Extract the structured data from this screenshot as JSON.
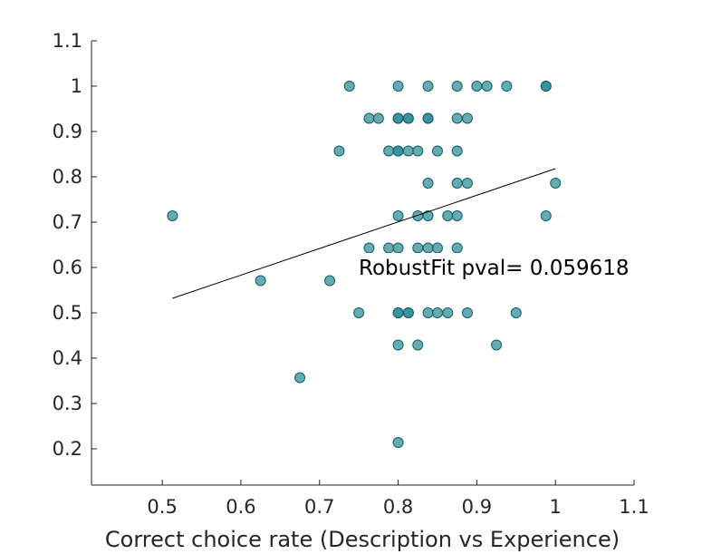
{
  "chart_data": {
    "type": "scatter",
    "title": "",
    "xlabel": "Correct choice rate (Description vs Experience)",
    "ylabel": "",
    "xlim": [
      0.41,
      1.1
    ],
    "ylim": [
      0.12,
      1.1
    ],
    "xticks": [
      "0.5",
      "0.6",
      "0.7",
      "0.8",
      "0.9",
      "1",
      "1.1"
    ],
    "yticks": [
      "0.2",
      "0.3",
      "0.4",
      "0.5",
      "0.6",
      "0.7",
      "0.8",
      "0.9",
      "1",
      "1.1"
    ],
    "grid": false,
    "marker_color": "#2b8a94",
    "marker_edge_color": "#0f5e66",
    "fit_line_color": "#000000",
    "annotation": "RobustFit pval= 0.059618",
    "fit_line": {
      "x": [
        0.513,
        1.0
      ],
      "y": [
        0.532,
        0.818
      ]
    },
    "points": [
      {
        "x": 0.738,
        "y": 1.0
      },
      {
        "x": 0.8,
        "y": 1.0
      },
      {
        "x": 0.838,
        "y": 1.0
      },
      {
        "x": 0.875,
        "y": 1.0
      },
      {
        "x": 0.9,
        "y": 1.0
      },
      {
        "x": 0.913,
        "y": 1.0
      },
      {
        "x": 0.938,
        "y": 1.0
      },
      {
        "x": 0.988,
        "y": 1.0
      },
      {
        "x": 0.988,
        "y": 1.0
      },
      {
        "x": 0.763,
        "y": 0.929
      },
      {
        "x": 0.775,
        "y": 0.929
      },
      {
        "x": 0.8,
        "y": 0.929
      },
      {
        "x": 0.8,
        "y": 0.929
      },
      {
        "x": 0.813,
        "y": 0.929
      },
      {
        "x": 0.813,
        "y": 0.929
      },
      {
        "x": 0.838,
        "y": 0.929
      },
      {
        "x": 0.838,
        "y": 0.929
      },
      {
        "x": 0.875,
        "y": 0.929
      },
      {
        "x": 0.888,
        "y": 0.929
      },
      {
        "x": 0.725,
        "y": 0.857
      },
      {
        "x": 0.788,
        "y": 0.857
      },
      {
        "x": 0.8,
        "y": 0.857
      },
      {
        "x": 0.8,
        "y": 0.857
      },
      {
        "x": 0.813,
        "y": 0.857
      },
      {
        "x": 0.825,
        "y": 0.857
      },
      {
        "x": 0.85,
        "y": 0.857
      },
      {
        "x": 0.875,
        "y": 0.857
      },
      {
        "x": 0.838,
        "y": 0.786
      },
      {
        "x": 0.875,
        "y": 0.786
      },
      {
        "x": 0.888,
        "y": 0.786
      },
      {
        "x": 1.0,
        "y": 0.786
      },
      {
        "x": 0.513,
        "y": 0.714
      },
      {
        "x": 0.8,
        "y": 0.714
      },
      {
        "x": 0.825,
        "y": 0.714
      },
      {
        "x": 0.838,
        "y": 0.714
      },
      {
        "x": 0.863,
        "y": 0.714
      },
      {
        "x": 0.875,
        "y": 0.714
      },
      {
        "x": 0.988,
        "y": 0.714
      },
      {
        "x": 0.763,
        "y": 0.643
      },
      {
        "x": 0.788,
        "y": 0.643
      },
      {
        "x": 0.8,
        "y": 0.643
      },
      {
        "x": 0.825,
        "y": 0.643
      },
      {
        "x": 0.838,
        "y": 0.643
      },
      {
        "x": 0.85,
        "y": 0.643
      },
      {
        "x": 0.875,
        "y": 0.643
      },
      {
        "x": 0.625,
        "y": 0.571
      },
      {
        "x": 0.713,
        "y": 0.571
      },
      {
        "x": 0.75,
        "y": 0.5
      },
      {
        "x": 0.8,
        "y": 0.5
      },
      {
        "x": 0.8,
        "y": 0.5
      },
      {
        "x": 0.813,
        "y": 0.5
      },
      {
        "x": 0.813,
        "y": 0.5
      },
      {
        "x": 0.838,
        "y": 0.5
      },
      {
        "x": 0.85,
        "y": 0.5
      },
      {
        "x": 0.863,
        "y": 0.5
      },
      {
        "x": 0.888,
        "y": 0.5
      },
      {
        "x": 0.95,
        "y": 0.5
      },
      {
        "x": 0.8,
        "y": 0.429
      },
      {
        "x": 0.825,
        "y": 0.429
      },
      {
        "x": 0.925,
        "y": 0.429
      },
      {
        "x": 0.675,
        "y": 0.357
      },
      {
        "x": 0.8,
        "y": 0.214
      }
    ]
  }
}
